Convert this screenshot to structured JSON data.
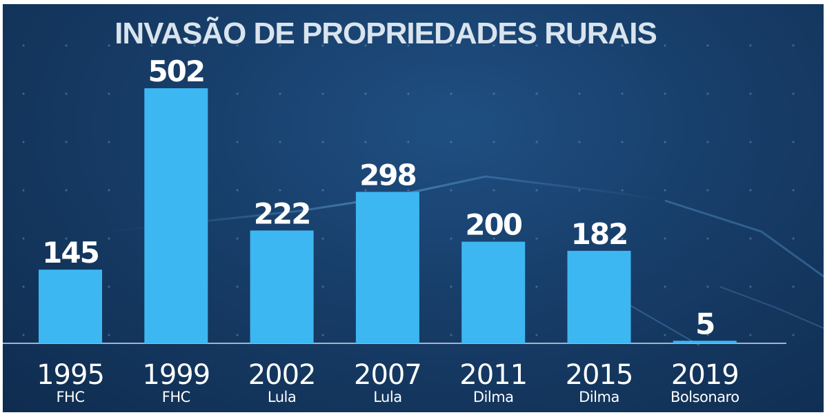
{
  "chart_data": {
    "type": "bar",
    "title": "INVASÃO DE  PROPRIEDADES RURAIS",
    "categories": [
      "1995",
      "1999",
      "2002",
      "2007",
      "2011",
      "2015",
      "2019"
    ],
    "category_sublabels": [
      "FHC",
      "FHC",
      "Lula",
      "Lula",
      "Dilma",
      "Dilma",
      "Bolsonaro"
    ],
    "values": [
      145,
      502,
      222,
      298,
      200,
      182,
      5
    ],
    "data_labels": [
      "145",
      "502",
      "222",
      "298",
      "200",
      "182",
      "5"
    ],
    "xlabel": "",
    "ylabel": "",
    "ylim": [
      0,
      502
    ],
    "grid": false,
    "legend": "none"
  },
  "colors": {
    "bar": "#3db7f2",
    "background": "#173d68",
    "baseline": "#9fb6cf",
    "text": "#ffffff",
    "title": "#d9e4ee"
  }
}
